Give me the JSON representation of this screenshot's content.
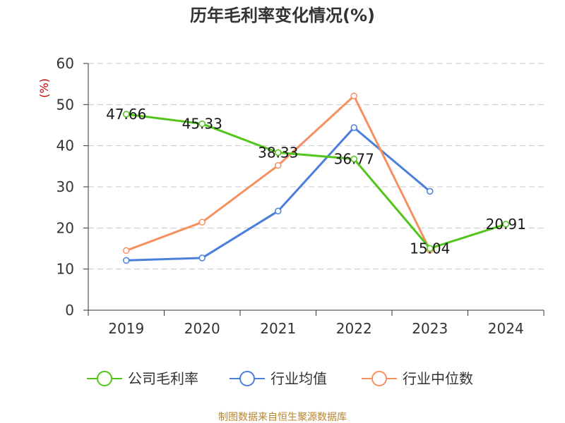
{
  "chart_data": {
    "type": "line",
    "title": "历年毛利率变化情况(%)",
    "ylabel": "(%)",
    "xlabel": "",
    "categories": [
      "2019",
      "2020",
      "2021",
      "2022",
      "2023",
      "2024"
    ],
    "ylim": [
      0,
      60
    ],
    "yticks": [
      0,
      10,
      20,
      30,
      40,
      50,
      60
    ],
    "grid": true,
    "legend_position": "bottom",
    "series": [
      {
        "name": "公司毛利率",
        "color": "#52c41a",
        "values": [
          47.66,
          45.33,
          38.33,
          36.77,
          15.04,
          20.91
        ],
        "labels": [
          "47.66",
          "45.33",
          "38.33",
          "36.77",
          "15.04",
          "20.91"
        ]
      },
      {
        "name": "行业均值",
        "color": "#4a7fdc",
        "values": [
          12.1,
          12.7,
          24.1,
          44.4,
          28.9,
          null
        ]
      },
      {
        "name": "行业中位数",
        "color": "#f59060",
        "values": [
          14.5,
          21.4,
          35.2,
          52.1,
          14.6,
          null
        ]
      }
    ]
  },
  "source": "制图数据来自恒生聚源数据库"
}
